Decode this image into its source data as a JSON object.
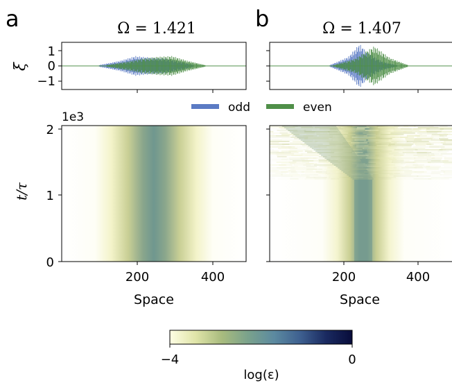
{
  "figure": {
    "panels": [
      {
        "letter": "a",
        "title": "Ω = 1.421",
        "omega": 1.421
      },
      {
        "letter": "b",
        "title": "Ω = 1.407",
        "omega": 1.407
      }
    ],
    "legend": [
      {
        "label": "odd",
        "color": "#5b7bc4"
      },
      {
        "label": "even",
        "color": "#4f8f48"
      }
    ],
    "colorbar": {
      "label": "log(ε)",
      "min_label": "−4",
      "max_label": "0",
      "range": [
        -4,
        0
      ],
      "colors": [
        "#fefee4",
        "#dfe4a8",
        "#a8bb7e",
        "#7aa28c",
        "#5c8aa0",
        "#3e6090",
        "#1a2a60",
        "#080c3a"
      ]
    }
  },
  "chart_data": [
    {
      "type": "line",
      "panel": "a",
      "title": "Ω = 1.421",
      "ylabel": "ξ",
      "yticks": [
        "1",
        "0",
        "−1"
      ],
      "ylim": [
        -1.6,
        1.6
      ],
      "xlim": [
        0,
        500
      ],
      "grid": false,
      "legend_position": "top-center",
      "series": [
        {
          "name": "odd",
          "envelope": {
            "x": [
              100,
              160,
              200,
              240,
              280,
              320,
              360
            ],
            "amplitude": [
              0.05,
              0.35,
              0.65,
              0.55,
              0.5,
              0.3,
              0.05
            ]
          }
        },
        {
          "name": "even",
          "envelope": {
            "x": [
              120,
              180,
              220,
              260,
              300,
              340,
              390
            ],
            "amplitude": [
              0.05,
              0.3,
              0.5,
              0.6,
              0.65,
              0.35,
              0.05
            ]
          }
        }
      ]
    },
    {
      "type": "line",
      "panel": "b",
      "title": "Ω = 1.407",
      "ylabel": "",
      "ylim": [
        -1.6,
        1.6
      ],
      "xlim": [
        0,
        500
      ],
      "grid": false,
      "series": [
        {
          "name": "odd",
          "envelope": {
            "x": [
              160,
              210,
              240,
              260,
              300,
              340
            ],
            "amplitude": [
              0.05,
              0.6,
              1.45,
              0.9,
              0.3,
              0.05
            ]
          }
        },
        {
          "name": "even",
          "envelope": {
            "x": [
              170,
              230,
              260,
              280,
              320,
              370
            ],
            "amplitude": [
              0.05,
              0.5,
              1.0,
              1.3,
              0.55,
              0.05
            ]
          }
        }
      ]
    },
    {
      "type": "heatmap",
      "panel": "a",
      "xlabel": "Space",
      "ylabel": "t/τ",
      "x_ticks": [
        "200",
        "400"
      ],
      "y_ticks": [
        "0",
        "1",
        "2"
      ],
      "y_multiplier": "1e3",
      "xlim": [
        0,
        500
      ],
      "ylim": [
        0,
        2.05
      ],
      "color_range": [
        -4,
        0
      ],
      "description_values": {
        "band_center": 250,
        "band_edges": [
          110,
          410
        ],
        "core": [
          215,
          285
        ]
      }
    },
    {
      "type": "heatmap",
      "panel": "b",
      "xlabel": "Space",
      "x_ticks": [
        "200",
        "400"
      ],
      "xlim": [
        0,
        500
      ],
      "ylim": [
        0,
        2.05
      ],
      "color_range": [
        -4,
        0
      ],
      "description_values": {
        "band_center": 250,
        "band_edges": [
          180,
          340
        ],
        "spread_start_t": 1.25,
        "turbulent_region_t": [
          1.25,
          2.05
        ]
      }
    }
  ]
}
